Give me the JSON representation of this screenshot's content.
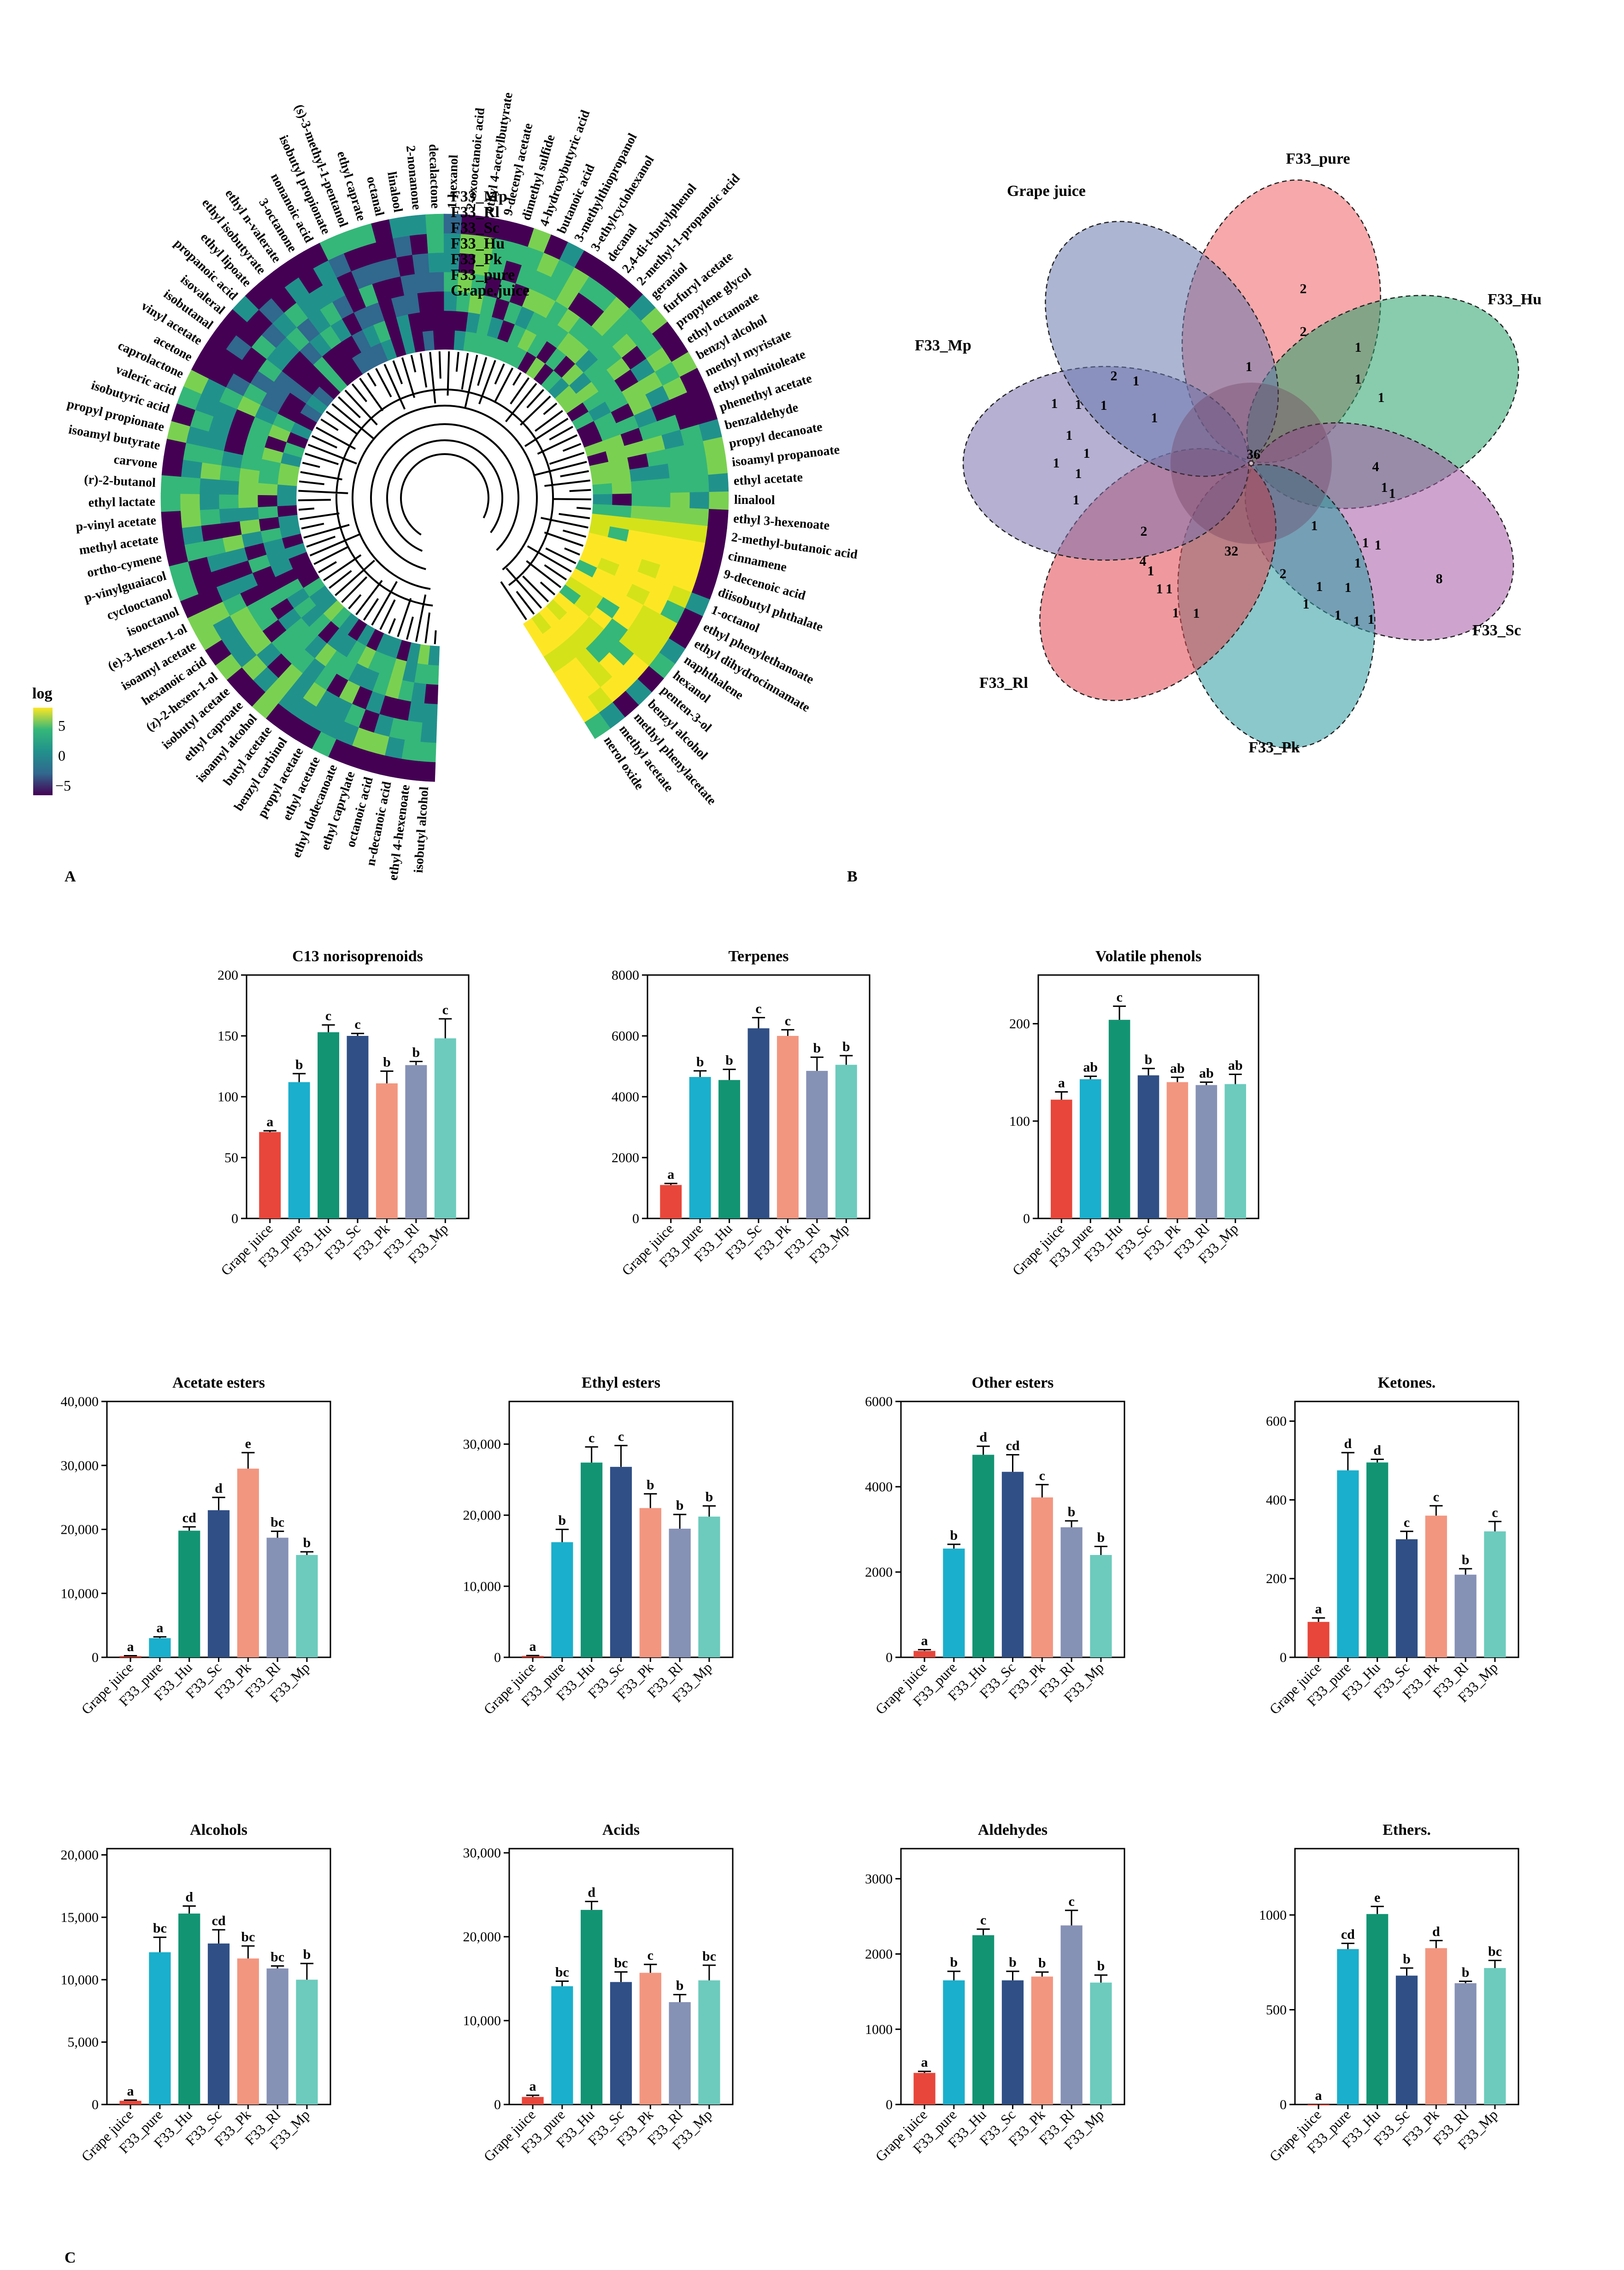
{
  "panel_labels": [
    "A",
    "B",
    "C"
  ],
  "colors": {
    "Grape juice": "#e8463a",
    "F33_pure": "#1aafcc",
    "F33_Hu": "#129473",
    "F33_Sc": "#2f4f86",
    "F33_Pk": "#f39680",
    "F33_Rl": "#8691b6",
    "F33_Mp": "#6ccbbd"
  },
  "heatmap": {
    "legend_title": "log",
    "legend_ticks": [
      "5",
      "0",
      "−5"
    ],
    "colors": [
      "#440154",
      "#31688e",
      "#21918c",
      "#35b779",
      "#fde725"
    ],
    "samples": [
      "F33_Mp",
      "F33_Rl",
      "F33_Sc",
      "F33_Hu",
      "F33_Pk",
      "F33_pure",
      "Grape.juice"
    ],
    "compounds": [
      "isobutyl alcohol",
      "ethyl 4-hexenoate",
      "n-decanoic acid",
      "octanoic acid",
      "ethyl caprylate",
      "ethyl dodecanoate",
      "ethyl acetate",
      "propyl acetate",
      "benzyl carbinol",
      "butyl acetate",
      "isoamyl alcohol",
      "ethyl caproate",
      "isobutyl acetate",
      "(z)-2-hexen-1-ol",
      "hexanoic acid",
      "isoamyl acetate",
      "(e)-3-hexen-1-ol",
      "isooctanol",
      "cyclooctanol",
      "p-vinylguaiacol",
      "ortho-cymene",
      "methyl acetate",
      "p-vinyl acetate",
      "ethyl lactate",
      "(r)-2-butanol",
      "carvone",
      "isoamyl butyrate",
      "propyl propionate",
      "isobutyric acid",
      "valeric acid",
      "caprolactone",
      "acetone",
      "vinyl acetate",
      "isobutanal",
      "isovaleral",
      "propanoic acid",
      "ethyl lipoate",
      "ethyl isobutyrate",
      "ethyl n-valerate",
      "3-octanone",
      "nonanoic acid",
      "isobutyl propionate",
      "(s)-3-methyl-1-pentanol",
      "ethyl caprate",
      "octanal",
      "linalool",
      "2-nonanone",
      "decalactone",
      "1-hexanol",
      "2-oxooctanoic acid",
      "ethyl 4-acetylbutyrate",
      "9-decenyl acetate",
      "dimethyl sulfide",
      "4-hydroxybutyric acid",
      "butanoic acid",
      "3-methylthiopropanol",
      "3-ethylcyclohexanol",
      "decanal",
      "2,4-di-t-butylphenol",
      "2-methyl-1-propanoic acid",
      "geraniol",
      "furfuryl acetate",
      "propylene glycol",
      "ethyl octanoate",
      "benzyl alcohol",
      "methyl myristate",
      "ethyl palmitoleate",
      "phenethyl acetate",
      "benzaldehyde",
      "propyl decanoate",
      "isoamyl propanoate",
      "ethyl acetate",
      "linalool",
      "ethyl 3-hexenoate",
      "2-methyl-butanoic acid",
      "cinnamene",
      "9-decenoic acid",
      "diisobutyl phthalate",
      "1-octanol",
      "ethyl phenylethanoate",
      "ethyl dihydrocinnamate",
      "naphthalene",
      "hexanol",
      "penten-3-ol",
      "benzyl alcohol",
      "methyl phenylacetate",
      "methyl acetate",
      "nerol oxide"
    ]
  },
  "venn": {
    "sets": [
      "F33_pure",
      "F33_Hu",
      "F33_Sc",
      "F33_Pk",
      "F33_Rl",
      "F33_Mp",
      "Grape juice"
    ],
    "colors": [
      "#f06064",
      "#27a06a",
      "#a65aa5",
      "#2b9aa0",
      "#e2464e",
      "#7a70ad",
      "#6779ad"
    ],
    "counts": [
      "36",
      "32",
      "8",
      "4",
      "4",
      "2",
      "2",
      "2",
      "2",
      "2",
      "1",
      "1",
      "1",
      "1",
      "1",
      "1",
      "1",
      "1",
      "1",
      "1",
      "1",
      "1",
      "1",
      "1",
      "1",
      "1",
      "1",
      "1",
      "1",
      "1",
      "1",
      "1",
      "1",
      "1",
      "1",
      "1",
      "1",
      "1",
      "1",
      "1",
      "1"
    ]
  },
  "chart_data": [
    {
      "type": "bar",
      "title": "C13 norisoprenoids",
      "categories": [
        "Grape juice",
        "F33_pure",
        "F33_Hu",
        "F33_Sc",
        "F33_Pk",
        "F33_Rl",
        "F33_Mp"
      ],
      "values": [
        71,
        112,
        153,
        150,
        111,
        126,
        148
      ],
      "errors": [
        1,
        7,
        6,
        2,
        10,
        3,
        16
      ],
      "letters": [
        "a",
        "b",
        "c",
        "c",
        "b",
        "b",
        "c"
      ],
      "ylim": [
        0,
        200
      ],
      "ticks": [
        "0",
        "50",
        "100",
        "150",
        "200"
      ]
    },
    {
      "type": "bar",
      "title": "Terpenes",
      "categories": [
        "Grape juice",
        "F33_pure",
        "F33_Hu",
        "F33_Sc",
        "F33_Pk",
        "F33_Rl",
        "F33_Mp"
      ],
      "values": [
        1100,
        4650,
        4550,
        6250,
        6000,
        4850,
        5050
      ],
      "errors": [
        50,
        200,
        350,
        350,
        200,
        450,
        300
      ],
      "letters": [
        "a",
        "b",
        "b",
        "c",
        "c",
        "b",
        "b"
      ],
      "ylim": [
        0,
        8000
      ],
      "ticks": [
        "0",
        "2000",
        "4000",
        "6000",
        "8000"
      ]
    },
    {
      "type": "bar",
      "title": "Volatile phenols",
      "categories": [
        "Grape juice",
        "F33_pure",
        "F33_Hu",
        "F33_Sc",
        "F33_Pk",
        "F33_Rl",
        "F33_Mp"
      ],
      "values": [
        122,
        143,
        204,
        147,
        140,
        137,
        138
      ],
      "errors": [
        8,
        3,
        14,
        7,
        5,
        3,
        10
      ],
      "letters": [
        "a",
        "ab",
        "c",
        "b",
        "ab",
        "ab",
        "ab"
      ],
      "ylim": [
        0,
        250
      ],
      "ticks": [
        "0",
        "100",
        "200"
      ],
      "tickValues": [
        0,
        100,
        200
      ]
    },
    {
      "type": "bar",
      "title": "Acetate esters",
      "categories": [
        "Grape juice",
        "F33_pure",
        "F33_Hu",
        "F33_Sc",
        "F33_Pk",
        "F33_Rl",
        "F33_Mp"
      ],
      "values": [
        200,
        3000,
        19800,
        23000,
        29500,
        18700,
        16000
      ],
      "errors": [
        50,
        200,
        600,
        2000,
        2500,
        1000,
        500
      ],
      "letters": [
        "a",
        "a",
        "cd",
        "d",
        "e",
        "bc",
        "b"
      ],
      "ylim": [
        0,
        40000
      ],
      "ticks": [
        "0",
        "10,000",
        "20,000",
        "30,000",
        "40,000"
      ]
    },
    {
      "type": "bar",
      "title": "Ethyl esters",
      "categories": [
        "Grape juice",
        "F33_pure",
        "F33_Hu",
        "F33_Sc",
        "F33_Pk",
        "F33_Rl",
        "F33_Mp"
      ],
      "values": [
        200,
        16200,
        27400,
        26800,
        21000,
        18100,
        19800
      ],
      "errors": [
        50,
        1800,
        2200,
        3000,
        2000,
        2000,
        1500
      ],
      "letters": [
        "a",
        "b",
        "c",
        "c",
        "b",
        "b",
        "b"
      ],
      "ylim": [
        0,
        36000
      ],
      "ticks": [
        "0",
        "10,000",
        "20,000",
        "30,000"
      ],
      "tickValues": [
        0,
        10000,
        20000,
        30000
      ]
    },
    {
      "type": "bar",
      "title": "Other esters",
      "categories": [
        "Grape juice",
        "F33_pure",
        "F33_Hu",
        "F33_Sc",
        "F33_Pk",
        "F33_Rl",
        "F33_Mp"
      ],
      "values": [
        150,
        2550,
        4750,
        4350,
        3750,
        3050,
        2400
      ],
      "errors": [
        30,
        100,
        200,
        400,
        300,
        150,
        200
      ],
      "letters": [
        "a",
        "b",
        "d",
        "cd",
        "c",
        "b",
        "b"
      ],
      "ylim": [
        0,
        6000
      ],
      "ticks": [
        "0",
        "2000",
        "4000",
        "6000"
      ],
      "tickValues": [
        0,
        2000,
        4000,
        6000
      ]
    },
    {
      "type": "bar",
      "title": "Ketones.",
      "categories": [
        "Grape juice",
        "F33_pure",
        "F33_Hu",
        "F33_Sc",
        "F33_Pk",
        "F33_Rl",
        "F33_Mp"
      ],
      "values": [
        90,
        475,
        495,
        300,
        360,
        210,
        320
      ],
      "errors": [
        10,
        45,
        8,
        20,
        25,
        15,
        25
      ],
      "letters": [
        "a",
        "d",
        "d",
        "c",
        "c",
        "b",
        "c"
      ],
      "ylim": [
        0,
        650
      ],
      "ticks": [
        "0",
        "200",
        "400",
        "600"
      ],
      "tickValues": [
        0,
        200,
        400,
        600
      ]
    },
    {
      "type": "bar",
      "title": "Alcohols",
      "categories": [
        "Grape juice",
        "F33_pure",
        "F33_Hu",
        "F33_Sc",
        "F33_Pk",
        "F33_Rl",
        "F33_Mp"
      ],
      "values": [
        300,
        12200,
        15300,
        12900,
        11700,
        10900,
        10000
      ],
      "errors": [
        50,
        1200,
        600,
        1100,
        1000,
        200,
        1300
      ],
      "letters": [
        "a",
        "bc",
        "d",
        "cd",
        "bc",
        "bc",
        "b"
      ],
      "ylim": [
        0,
        20500
      ],
      "ticks": [
        "0",
        "5,000",
        "10,000",
        "15,000",
        "20,000"
      ],
      "tickValues": [
        0,
        5000,
        10000,
        15000,
        20000
      ]
    },
    {
      "type": "bar",
      "title": "Acids",
      "categories": [
        "Grape juice",
        "F33_pure",
        "F33_Hu",
        "F33_Sc",
        "F33_Pk",
        "F33_Rl",
        "F33_Mp"
      ],
      "values": [
        900,
        14100,
        23200,
        14600,
        15700,
        12200,
        14800
      ],
      "errors": [
        200,
        600,
        1000,
        1200,
        1000,
        900,
        1800
      ],
      "letters": [
        "a",
        "bc",
        "d",
        "bc",
        "c",
        "b",
        "bc"
      ],
      "ylim": [
        0,
        30500
      ],
      "ticks": [
        "0",
        "10,000",
        "20,000",
        "30,000"
      ],
      "tickValues": [
        0,
        10000,
        20000,
        30000
      ]
    },
    {
      "type": "bar",
      "title": "Aldehydes",
      "categories": [
        "Grape juice",
        "F33_pure",
        "F33_Hu",
        "F33_Sc",
        "F33_Pk",
        "F33_Rl",
        "F33_Mp"
      ],
      "values": [
        420,
        1650,
        2250,
        1650,
        1700,
        2380,
        1620
      ],
      "errors": [
        20,
        120,
        80,
        120,
        60,
        200,
        100
      ],
      "letters": [
        "a",
        "b",
        "c",
        "b",
        "b",
        "c",
        "b"
      ],
      "ylim": [
        0,
        3400
      ],
      "ticks": [
        "0",
        "1000",
        "2000",
        "3000"
      ],
      "tickValues": [
        0,
        1000,
        2000,
        3000
      ]
    },
    {
      "type": "bar",
      "title": "Ethers.",
      "categories": [
        "Grape juice",
        "F33_pure",
        "F33_Hu",
        "F33_Sc",
        "F33_Pk",
        "F33_Rl",
        "F33_Mp"
      ],
      "values": [
        0,
        820,
        1005,
        680,
        825,
        640,
        720
      ],
      "errors": [
        0,
        30,
        40,
        40,
        40,
        10,
        40
      ],
      "letters": [
        "a",
        "cd",
        "e",
        "b",
        "d",
        "b",
        "bc"
      ],
      "ylim": [
        0,
        1350
      ],
      "ticks": [
        "0",
        "500",
        "1000"
      ],
      "tickValues": [
        0,
        500,
        1000
      ]
    }
  ]
}
